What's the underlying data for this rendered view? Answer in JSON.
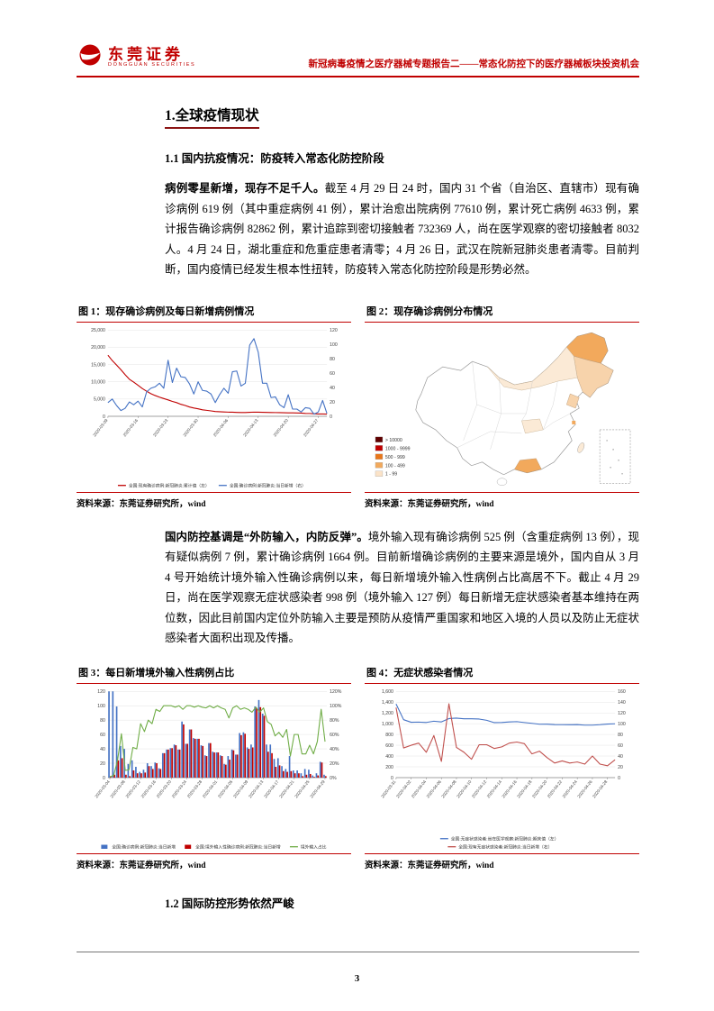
{
  "page": {
    "number": "3"
  },
  "header": {
    "logo_cn": "东莞证券",
    "logo_en": "DONGGUAN SECURITIES",
    "report_title": "新冠病毒疫情之医疗器械专题报告二——常态化防控下的医疗器械板块投资机会",
    "accent_color": "#C00000"
  },
  "sections": {
    "h1": "1.全球疫情现状",
    "h11": "1.1 国内抗疫情况：防疫转入常态化防控阶段",
    "h12": "1.2 国际防控形势依然严峻"
  },
  "paragraphs": {
    "p1_bold": "病例零星新增，现存不足千人。",
    "p1_rest": "截至 4 月 29 日 24 时，国内 31 个省（自治区、直辖市）现有确诊病例 619 例（其中重症病例 41 例），累计治愈出院病例 77610 例，累计死亡病例 4633 例，累计报告确诊病例 82862 例，累计追踪到密切接触者 732369 人，尚在医学观察的密切接触者 8032 人。4 月 24 日，湖北重症和危重症患者清零；4 月 26 日，武汉在院新冠肺炎患者清零。目前判断，国内疫情已经发生根本性扭转，防疫转入常态化防控阶段是形势必然。",
    "p2_bold": "国内防控基调是“外防输入，内防反弹”。",
    "p2_rest": "境外输入现有确诊病例 525 例（含重症病例 13 例），现有疑似病例 7 例，累计确诊病例 1664 例。目前新增确诊病例的主要来源是境外，国内自从 3 月 4 号开始统计境外输入性确诊病例以来，每日新增境外输入性病例占比高居不下。截止 4 月 29 日，尚在医学观察无症状感染者 998 例（境外输入 127 例）每日新增无症状感染者基本维持在两位数，因此目前国内定位外防输入主要是预防从疫情严重国家和地区入境的人员以及防止无症状感染者大面积出现及传播。"
  },
  "figures": [
    {
      "title": "图 1：现存确诊病例及每日新增病例情况",
      "source": "资料来源：东莞证券研究所，wind"
    },
    {
      "title": "图 2：现存确诊病例分布情况",
      "source": "资料来源：东莞证券研究所，wind"
    },
    {
      "title": "图 3：每日新增境外输入性病例占比",
      "source": "资料来源：东莞证券研究所，wind"
    },
    {
      "title": "图 4：无症状感染者情况",
      "source": "资料来源：东莞证券研究所，wind"
    }
  ],
  "chart_data": [
    {
      "id": "fig1",
      "type": "line",
      "title": "现存确诊病例及每日新增病例情况",
      "x": [
        "2020-03-09",
        "2020-03-10",
        "2020-03-11",
        "2020-03-12",
        "2020-03-13",
        "2020-03-14",
        "2020-03-15",
        "2020-03-16",
        "2020-03-17",
        "2020-03-18",
        "2020-03-19",
        "2020-03-20",
        "2020-03-21",
        "2020-03-22",
        "2020-03-23",
        "2020-03-24",
        "2020-03-25",
        "2020-03-26",
        "2020-03-27",
        "2020-03-28",
        "2020-03-29",
        "2020-03-30",
        "2020-03-31",
        "2020-04-01",
        "2020-04-02",
        "2020-04-03",
        "2020-04-04",
        "2020-04-05",
        "2020-04-06",
        "2020-04-07",
        "2020-04-08",
        "2020-04-09",
        "2020-04-10",
        "2020-04-11",
        "2020-04-12",
        "2020-04-13",
        "2020-04-14",
        "2020-04-15",
        "2020-04-16",
        "2020-04-17",
        "2020-04-18",
        "2020-04-19",
        "2020-04-20",
        "2020-04-21",
        "2020-04-22",
        "2020-04-23",
        "2020-04-24",
        "2020-04-25",
        "2020-04-26",
        "2020-04-27",
        "2020-04-28",
        "2020-04-29"
      ],
      "x_tick_every": 7,
      "left_axis": {
        "min": 0,
        "max": 25000,
        "ticks": [
          "0",
          "5,000",
          "10,000",
          "15,000",
          "20,000",
          "25,000"
        ]
      },
      "right_axis": {
        "min": 0,
        "max": 120,
        "ticks": [
          "0",
          "20",
          "40",
          "60",
          "80",
          "100",
          "120"
        ]
      },
      "series": [
        {
          "name": "全国:现有确诊病例:新冠肺炎:累计值（左）",
          "type": "line",
          "axis": "left",
          "color": "#C00000",
          "values": [
            17721,
            16145,
            14831,
            13526,
            12094,
            10734,
            9898,
            8976,
            8056,
            7263,
            6569,
            6013,
            5549,
            5120,
            4735,
            4287,
            3947,
            3460,
            3128,
            2691,
            2396,
            2161,
            1863,
            1727,
            1562,
            1376,
            1299,
            1242,
            1190,
            1160,
            1116,
            1104,
            1089,
            1156,
            1205,
            1170,
            1137,
            1107,
            1081,
            1058,
            1041,
            1007,
            999,
            982,
            959,
            915,
            838,
            801,
            723,
            648,
            647,
            619
          ]
        },
        {
          "name": "全国:确诊病例:新冠肺炎:当日新增（右）",
          "type": "line",
          "axis": "right",
          "color": "#4472C4",
          "values": [
            19,
            24,
            15,
            8,
            11,
            20,
            16,
            21,
            13,
            34,
            39,
            41,
            46,
            39,
            78,
            47,
            67,
            55,
            54,
            45,
            31,
            48,
            36,
            35,
            31,
            19,
            30,
            39,
            32,
            62,
            63,
            42,
            46,
            99,
            108,
            89,
            46,
            46,
            26,
            27,
            16,
            12,
            30,
            10,
            10,
            6,
            12,
            11,
            3,
            6,
            22,
            4
          ]
        }
      ],
      "legend_rows": [
        [
          0,
          1
        ]
      ],
      "grid": true,
      "legend_position": "bottom"
    },
    {
      "id": "fig2",
      "type": "map",
      "title": "现存确诊病例分布情况",
      "region": "中国（分省现存确诊病例数）",
      "legend": [
        {
          "label": "> 10000",
          "color": "#5E0000"
        },
        {
          "label": "1000 - 9999",
          "color": "#C00000"
        },
        {
          "label": "500 - 999",
          "color": "#E8761A"
        },
        {
          "label": "100 - 499",
          "color": "#F2A95C"
        },
        {
          "label": "1 - 99",
          "color": "#FBE3C8"
        }
      ]
    },
    {
      "id": "fig3",
      "type": "bar",
      "title": "每日新增境外输入性病例占比",
      "x": [
        "2020-03-04",
        "2020-03-05",
        "2020-03-06",
        "2020-03-07",
        "2020-03-08",
        "2020-03-09",
        "2020-03-10",
        "2020-03-11",
        "2020-03-12",
        "2020-03-13",
        "2020-03-14",
        "2020-03-15",
        "2020-03-16",
        "2020-03-17",
        "2020-03-18",
        "2020-03-19",
        "2020-03-20",
        "2020-03-21",
        "2020-03-22",
        "2020-03-23",
        "2020-03-24",
        "2020-03-25",
        "2020-03-26",
        "2020-03-27",
        "2020-03-28",
        "2020-03-29",
        "2020-03-30",
        "2020-03-31",
        "2020-04-01",
        "2020-04-02",
        "2020-04-03",
        "2020-04-04",
        "2020-04-05",
        "2020-04-06",
        "2020-04-07",
        "2020-04-08",
        "2020-04-09",
        "2020-04-10",
        "2020-04-11",
        "2020-04-12",
        "2020-04-13",
        "2020-04-14",
        "2020-04-15",
        "2020-04-16",
        "2020-04-17",
        "2020-04-18",
        "2020-04-19",
        "2020-04-20",
        "2020-04-21",
        "2020-04-22",
        "2020-04-23",
        "2020-04-24",
        "2020-04-25",
        "2020-04-26",
        "2020-04-27",
        "2020-04-28",
        "2020-04-29"
      ],
      "x_tick_every": 4,
      "left_axis": {
        "min": 0,
        "max": 120,
        "ticks": [
          "0",
          "20",
          "40",
          "60",
          "80",
          "100",
          "120"
        ]
      },
      "right_axis": {
        "min": 0,
        "max": 120,
        "ticks": [
          "0%",
          "20%",
          "40%",
          "60%",
          "80%",
          "100%",
          "120%"
        ]
      },
      "series": [
        {
          "name": "全国:确诊病例:新冠肺炎:当日新增",
          "type": "bar",
          "axis": "left",
          "color": "#4472C4",
          "values": [
            139,
            143,
            99,
            44,
            40,
            19,
            24,
            15,
            8,
            11,
            20,
            16,
            21,
            13,
            34,
            39,
            41,
            46,
            39,
            78,
            47,
            67,
            55,
            54,
            45,
            31,
            48,
            36,
            35,
            31,
            19,
            30,
            39,
            32,
            62,
            63,
            42,
            46,
            99,
            108,
            89,
            46,
            46,
            26,
            27,
            16,
            12,
            30,
            10,
            10,
            6,
            12,
            11,
            3,
            6,
            22,
            4
          ]
        },
        {
          "name": "全国:境外输入性确诊病例:新冠肺炎:当日新增",
          "type": "bar",
          "axis": "left",
          "color": "#C00000",
          "values": [
            2,
            4,
            24,
            27,
            4,
            2,
            10,
            6,
            6,
            7,
            16,
            12,
            20,
            12,
            34,
            39,
            41,
            45,
            39,
            74,
            47,
            67,
            54,
            54,
            44,
            30,
            48,
            35,
            35,
            30,
            18,
            25,
            38,
            32,
            59,
            61,
            40,
            42,
            97,
            98,
            86,
            36,
            34,
            15,
            17,
            9,
            8,
            9,
            6,
            6,
            2,
            4,
            5,
            1,
            3,
            21,
            2
          ]
        },
        {
          "name": "境外输入占比",
          "type": "line",
          "axis": "right",
          "color": "#70AD47",
          "values": [
            1,
            3,
            24,
            61,
            10,
            11,
            42,
            40,
            75,
            64,
            80,
            75,
            95,
            92,
            100,
            100,
            100,
            98,
            100,
            95,
            100,
            100,
            98,
            100,
            98,
            97,
            100,
            97,
            100,
            97,
            95,
            83,
            97,
            100,
            95,
            97,
            95,
            91,
            98,
            91,
            97,
            78,
            74,
            58,
            63,
            56,
            67,
            30,
            60,
            60,
            33,
            33,
            45,
            33,
            50,
            95,
            50
          ]
        }
      ],
      "legend_rows": [
        [
          0,
          1,
          2
        ]
      ],
      "grid": true,
      "legend_position": "bottom"
    },
    {
      "id": "fig4",
      "type": "line",
      "title": "无症状感染者情况",
      "x": [
        "2020-03-31",
        "2020-04-01",
        "2020-04-02",
        "2020-04-03",
        "2020-04-04",
        "2020-04-05",
        "2020-04-06",
        "2020-04-07",
        "2020-04-08",
        "2020-04-09",
        "2020-04-10",
        "2020-04-11",
        "2020-04-12",
        "2020-04-13",
        "2020-04-14",
        "2020-04-15",
        "2020-04-16",
        "2020-04-17",
        "2020-04-18",
        "2020-04-19",
        "2020-04-20",
        "2020-04-21",
        "2020-04-22",
        "2020-04-23",
        "2020-04-24",
        "2020-04-25",
        "2020-04-26",
        "2020-04-27",
        "2020-04-28",
        "2020-04-29"
      ],
      "x_tick_every": 2,
      "left_axis": {
        "min": 0,
        "max": 1600,
        "ticks": [
          "0",
          "200",
          "400",
          "600",
          "800",
          "1,000",
          "1,200",
          "1,400",
          "1,600"
        ]
      },
      "right_axis": {
        "min": 0,
        "max": 160,
        "ticks": [
          "0",
          "20",
          "40",
          "60",
          "80",
          "100",
          "120",
          "140",
          "160"
        ]
      },
      "series": [
        {
          "name": "全国:无症状感染者:尚在医学观察:新冠肺炎:期末值（左）",
          "type": "line",
          "axis": "left",
          "color": "#4472C4",
          "values": [
            1367,
            1075,
            1027,
            1030,
            1024,
            1047,
            1033,
            1095,
            1104,
            1092,
            1092,
            1086,
            1064,
            1020,
            1023,
            1034,
            1038,
            1022,
            1006,
            990,
            991,
            983,
            982,
            980,
            983,
            974,
            974,
            981,
            993,
            998
          ]
        },
        {
          "name": "全国:现有无症状感染者:新冠肺炎:当日新增（右）",
          "type": "line",
          "axis": "right",
          "color": "#C0504D",
          "values": [
            130,
            55,
            60,
            64,
            47,
            78,
            30,
            137,
            56,
            47,
            34,
            61,
            61,
            54,
            57,
            64,
            66,
            63,
            44,
            49,
            37,
            27,
            31,
            27,
            29,
            25,
            40,
            25,
            22,
            33
          ]
        }
      ],
      "legend_rows": [
        [
          0
        ],
        [
          1
        ]
      ],
      "grid": true,
      "legend_position": "bottom"
    }
  ]
}
